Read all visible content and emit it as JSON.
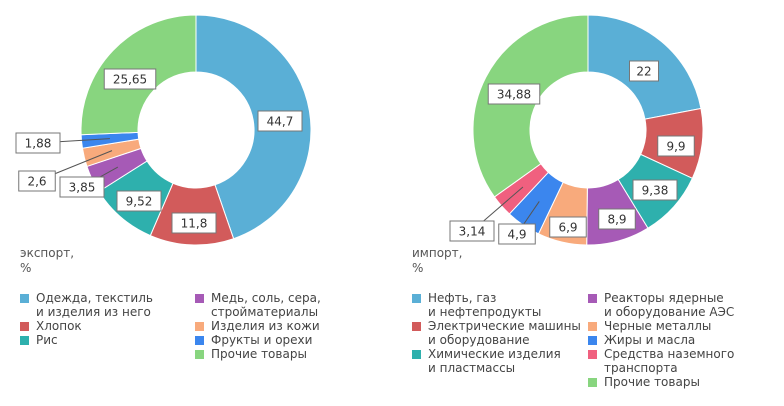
{
  "chart_data": [
    {
      "type": "donut",
      "label": "экспорт,\n%",
      "categories": [
        "Одежда, текстиль\nи изделия из него",
        "Хлопок",
        "Рис",
        "Медь, соль, сера,\nстройматериалы",
        "Изделия из кожи",
        "Фрукты и орехи",
        "Прочие товары"
      ],
      "values": [
        44.7,
        11.8,
        9.52,
        3.85,
        2.6,
        1.88,
        25.65
      ],
      "value_labels": [
        "44,7",
        "11,8",
        "9,52",
        "3,85",
        "2,6",
        "1,88",
        "25,65"
      ],
      "colors": [
        "#5aafd6",
        "#d25b5b",
        "#2eb0ad",
        "#a65ab6",
        "#f8aa7c",
        "#3b86ee",
        "#88d57f"
      ]
    },
    {
      "type": "donut",
      "label": "импорт,\n%",
      "categories": [
        "Нефть, газ\nи нефтепродукты",
        "Электрические машины\nи оборудование",
        "Химические изделия\nи пластмассы",
        "Реакторы ядерные\nи оборудование АЭС",
        "Черные металлы",
        "Жиры и масла",
        "Средства наземного\nтранспорта",
        "Прочие товары"
      ],
      "values": [
        22,
        9.9,
        9.38,
        8.9,
        6.9,
        4.9,
        3.14,
        34.88
      ],
      "value_labels": [
        "22",
        "9,9",
        "9,38",
        "8,9",
        "6,9",
        "4,9",
        "3,14",
        "34,88"
      ],
      "colors": [
        "#5aafd6",
        "#d25b5b",
        "#2eb0ad",
        "#a65ab6",
        "#f8aa7c",
        "#3b86ee",
        "#f0607f",
        "#88d57f"
      ]
    }
  ]
}
